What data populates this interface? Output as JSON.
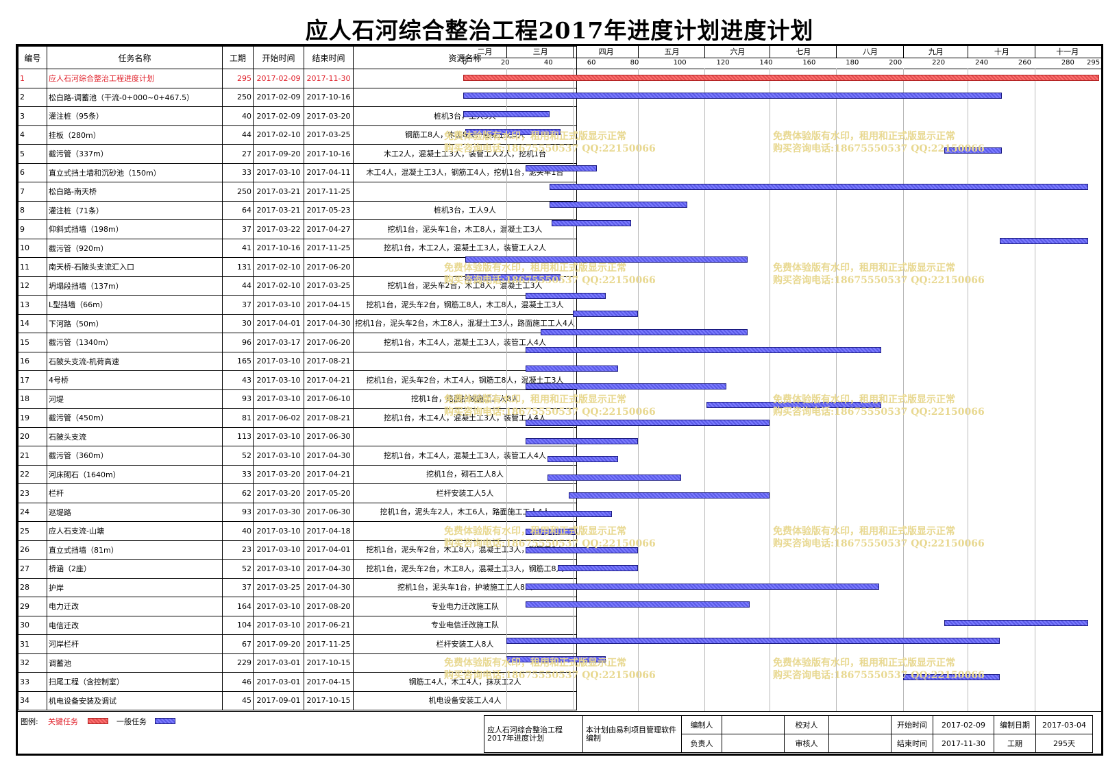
{
  "title": "应人石河综合整治工程2017年进度计划进度计划",
  "headers": {
    "id": "编号",
    "name": "任务名称",
    "duration": "工期",
    "start": "开始时间",
    "end": "结束时间",
    "resource": "资源名称"
  },
  "months": [
    "二月",
    "三月",
    "四月",
    "五月",
    "六月",
    "七月",
    "八月",
    "九月",
    "十月",
    "十一月"
  ],
  "chart_data": {
    "type": "gantt",
    "x_ticks": [
      0,
      20,
      40,
      60,
      80,
      100,
      120,
      140,
      160,
      180,
      200,
      220,
      240,
      260,
      280,
      295
    ],
    "x_unit": "day offset from 2017-02-09",
    "tasks": [
      {
        "id": "1",
        "name": "应人石河综合整治工程进度计划",
        "duration": "295",
        "start": "2017-02-09",
        "end": "2017-11-30",
        "resource": "",
        "critical": true,
        "s": 0,
        "d": 295
      },
      {
        "id": "2",
        "name": "松白路-调蓄池（干流-0+000~0+467.5）",
        "duration": "250",
        "start": "2017-02-09",
        "end": "2017-10-16",
        "resource": "",
        "s": 0,
        "d": 250
      },
      {
        "id": "3",
        "name": "灌注桩（95条）",
        "duration": "40",
        "start": "2017-02-09",
        "end": "2017-03-20",
        "resource": "桩机3台，工人9人",
        "s": 0,
        "d": 40
      },
      {
        "id": "4",
        "name": "挂板（280m）",
        "duration": "44",
        "start": "2017-02-10",
        "end": "2017-03-25",
        "resource": "钢筋工8人，木工8人，混凝土工3人",
        "s": 1,
        "d": 44
      },
      {
        "id": "5",
        "name": "截污管（337m）",
        "duration": "27",
        "start": "2017-09-20",
        "end": "2017-10-16",
        "resource": "木工2人，混凝土工3人，装管工人2人，挖机1台",
        "s": 223,
        "d": 27
      },
      {
        "id": "6",
        "name": "直立式挡土墙和沉砂池（150m）",
        "duration": "33",
        "start": "2017-03-10",
        "end": "2017-04-11",
        "resource": "木工4人，混凝土工3人，钢筋工4人，挖机1台，泥头车1台",
        "s": 29,
        "d": 33
      },
      {
        "id": "7",
        "name": "松白路-南天桥",
        "duration": "250",
        "start": "2017-03-21",
        "end": "2017-11-25",
        "resource": "",
        "s": 40,
        "d": 250
      },
      {
        "id": "8",
        "name": "灌注桩（71条）",
        "duration": "64",
        "start": "2017-03-21",
        "end": "2017-05-23",
        "resource": "桩机3台，工人9人",
        "s": 40,
        "d": 64
      },
      {
        "id": "9",
        "name": "仰斜式挡墙（198m）",
        "duration": "37",
        "start": "2017-03-22",
        "end": "2017-04-27",
        "resource": "挖机1台，泥头车1台，木工8人，混凝土工3人",
        "s": 41,
        "d": 37
      },
      {
        "id": "10",
        "name": "截污管（920m）",
        "duration": "41",
        "start": "2017-10-16",
        "end": "2017-11-25",
        "resource": "挖机1台，木工2人，混凝土工3人，装管工人2人",
        "s": 249,
        "d": 41
      },
      {
        "id": "11",
        "name": "南天桥-石陂头支流汇入口",
        "duration": "131",
        "start": "2017-02-10",
        "end": "2017-06-20",
        "resource": "",
        "s": 1,
        "d": 131
      },
      {
        "id": "12",
        "name": "坍塌段挡墙（137m）",
        "duration": "44",
        "start": "2017-02-10",
        "end": "2017-03-25",
        "resource": "挖机1台，泥头车2台，木工8人，混凝土工3人",
        "s": 1,
        "d": 44
      },
      {
        "id": "13",
        "name": "L型挡墙（66m）",
        "duration": "37",
        "start": "2017-03-10",
        "end": "2017-04-15",
        "resource": "挖机1台，泥头车2台，钢筋工8人，木工8人，混凝土工3人",
        "s": 29,
        "d": 37
      },
      {
        "id": "14",
        "name": "下河路（50m）",
        "duration": "30",
        "start": "2017-04-01",
        "end": "2017-04-30",
        "resource": "挖机1台，泥头车2台，木工8人，混凝土工3人，路面施工工人4人",
        "s": 51,
        "d": 30
      },
      {
        "id": "15",
        "name": "截污管（1340m）",
        "duration": "96",
        "start": "2017-03-17",
        "end": "2017-06-20",
        "resource": "挖机1台，木工4人，混凝土工3人，装管工人4人",
        "s": 36,
        "d": 96
      },
      {
        "id": "16",
        "name": "石陂头支流-机荷高速",
        "duration": "165",
        "start": "2017-03-10",
        "end": "2017-08-21",
        "resource": "",
        "s": 29,
        "d": 165
      },
      {
        "id": "17",
        "name": "4号桥",
        "duration": "43",
        "start": "2017-03-10",
        "end": "2017-04-21",
        "resource": "挖机1台，泥头车2台，木工4人，钢筋工8人，混凝土工3人",
        "s": 29,
        "d": 43
      },
      {
        "id": "18",
        "name": "河堤",
        "duration": "93",
        "start": "2017-03-10",
        "end": "2017-06-10",
        "resource": "挖机1台，路面护坡施工工人8人",
        "s": 29,
        "d": 93
      },
      {
        "id": "19",
        "name": "截污管（450m）",
        "duration": "81",
        "start": "2017-06-02",
        "end": "2017-08-21",
        "resource": "挖机1台，木工4人，混凝土工3人，装管工人4人",
        "s": 113,
        "d": 81
      },
      {
        "id": "20",
        "name": "石陂头支流",
        "duration": "113",
        "start": "2017-03-10",
        "end": "2017-06-30",
        "resource": "",
        "s": 29,
        "d": 113
      },
      {
        "id": "21",
        "name": "截污管（360m）",
        "duration": "52",
        "start": "2017-03-10",
        "end": "2017-04-30",
        "resource": "挖机1台，木工4人，混凝土工3人，装管工人4人",
        "s": 29,
        "d": 52
      },
      {
        "id": "22",
        "name": "河床砌石（1640m）",
        "duration": "33",
        "start": "2017-03-20",
        "end": "2017-04-21",
        "resource": "挖机1台，砌石工人8人",
        "s": 39,
        "d": 33
      },
      {
        "id": "23",
        "name": "栏杆",
        "duration": "62",
        "start": "2017-03-20",
        "end": "2017-05-20",
        "resource": "栏杆安装工人5人",
        "s": 39,
        "d": 62
      },
      {
        "id": "24",
        "name": "巡堤路",
        "duration": "93",
        "start": "2017-03-30",
        "end": "2017-06-30",
        "resource": "挖机1台，泥头车2人，木工6人，路面施工工人4人",
        "s": 49,
        "d": 93
      },
      {
        "id": "25",
        "name": "应人石支流-山塘",
        "duration": "40",
        "start": "2017-03-10",
        "end": "2017-04-18",
        "resource": "",
        "s": 29,
        "d": 40
      },
      {
        "id": "26",
        "name": "直立式挡墙（81m）",
        "duration": "23",
        "start": "2017-03-10",
        "end": "2017-04-01",
        "resource": "挖机1台，泥头车2台，木工8人，混凝土工3人，钢筋工8人",
        "s": 29,
        "d": 23
      },
      {
        "id": "27",
        "name": "桥涵（2座）",
        "duration": "52",
        "start": "2017-03-10",
        "end": "2017-04-30",
        "resource": "挖机1台，泥头车2台，木工8人，混凝土工3人，钢筋工8人",
        "s": 29,
        "d": 52
      },
      {
        "id": "28",
        "name": "护岸",
        "duration": "37",
        "start": "2017-03-25",
        "end": "2017-04-30",
        "resource": "挖机1台，泥头车1台，护坡施工工人8人",
        "s": 44,
        "d": 37
      },
      {
        "id": "29",
        "name": "电力迁改",
        "duration": "164",
        "start": "2017-03-10",
        "end": "2017-08-20",
        "resource": "专业电力迁改施工队",
        "s": 29,
        "d": 164
      },
      {
        "id": "30",
        "name": "电信迁改",
        "duration": "104",
        "start": "2017-03-10",
        "end": "2017-06-21",
        "resource": "专业电信迁改施工队",
        "s": 29,
        "d": 104
      },
      {
        "id": "31",
        "name": "河岸栏杆",
        "duration": "67",
        "start": "2017-09-20",
        "end": "2017-11-25",
        "resource": "栏杆安装工人8人",
        "s": 223,
        "d": 67
      },
      {
        "id": "32",
        "name": "调蓄池",
        "duration": "229",
        "start": "2017-03-01",
        "end": "2017-10-15",
        "resource": "",
        "s": 20,
        "d": 229
      },
      {
        "id": "33",
        "name": "扫尾工程（含控制室）",
        "duration": "46",
        "start": "2017-03-01",
        "end": "2017-04-15",
        "resource": "钢筋工4人，木工4人，抹灰工2人",
        "s": 20,
        "d": 46
      },
      {
        "id": "34",
        "name": "机电设备安装及调试",
        "duration": "45",
        "start": "2017-09-01",
        "end": "2017-10-15",
        "resource": "机电设备安装工人4人",
        "s": 204,
        "d": 45
      }
    ]
  },
  "watermark": {
    "line1": "免费体验版有水印，租用和正式版显示正常",
    "line2": "购买咨询电话:18675550537 QQ:22150066"
  },
  "legend": {
    "prefix": "图例:",
    "critical": "关键任务",
    "normal": "一般任务"
  },
  "colors": {
    "critical": "#ff5a5a",
    "normal": "#6a6af0"
  },
  "footer": {
    "project": "应人石河综合整治工程2017年进度计划",
    "software": "本计划由易利项目管理软件编制",
    "editor_label": "编制人",
    "checker_label": "校对人",
    "owner_label": "负责人",
    "reviewer_label": "审核人",
    "start_label": "开始时间",
    "start_value": "2017-02-09",
    "date_label": "编制日期",
    "date_value": "2017-03-04",
    "end_label": "结束时间",
    "end_value": "2017-11-30",
    "duration_label": "工期",
    "duration_value": "295天"
  }
}
